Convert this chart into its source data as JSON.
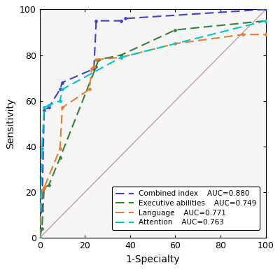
{
  "combined_index": {
    "x": [
      0,
      0,
      1,
      2,
      4,
      9,
      10,
      24,
      25,
      36,
      38,
      100
    ],
    "y": [
      0,
      11,
      12,
      56,
      57,
      65,
      68,
      74,
      95,
      95,
      96,
      100
    ],
    "color": "#4040c8",
    "label": "Combined index",
    "auc": "AUC=0.880"
  },
  "executive_abilities": {
    "x": [
      0,
      1,
      2,
      4,
      9,
      25,
      26,
      36,
      60,
      100
    ],
    "y": [
      0,
      4,
      22,
      23,
      35,
      75,
      78,
      80,
      91,
      95
    ],
    "color": "#3a7d3a",
    "label": "Executive abilities",
    "auc": "AUC=0.749"
  },
  "language": {
    "x": [
      0,
      1,
      2,
      9,
      10,
      22,
      23,
      24,
      25,
      36,
      60,
      90,
      100
    ],
    "y": [
      0,
      21,
      22,
      39,
      57,
      65,
      74,
      75,
      78,
      79,
      85,
      89,
      89
    ],
    "color": "#e08030",
    "label": "Language",
    "auc": "AUC=0.771"
  },
  "attention": {
    "x": [
      0,
      1,
      2,
      4,
      9,
      10,
      36,
      100
    ],
    "y": [
      0,
      39,
      57,
      58,
      60,
      65,
      79,
      95
    ],
    "color": "#00c8c8",
    "label": "Attention",
    "auc": "AUC=0.763"
  },
  "diagonal": {
    "x": [
      0,
      100
    ],
    "y": [
      0,
      100
    ],
    "color": "#c8a0a0"
  },
  "xlabel": "1-Specialty",
  "ylabel": "Sensitivity",
  "xlim": [
    0,
    100
  ],
  "ylim": [
    0,
    100
  ],
  "xticks": [
    0,
    20,
    40,
    60,
    80,
    100
  ],
  "yticks": [
    0,
    20,
    40,
    60,
    80,
    100
  ],
  "legend_fontsize": 7.5,
  "axis_fontsize": 10,
  "tick_fontsize": 9,
  "bg_color": "#f5f5f5"
}
